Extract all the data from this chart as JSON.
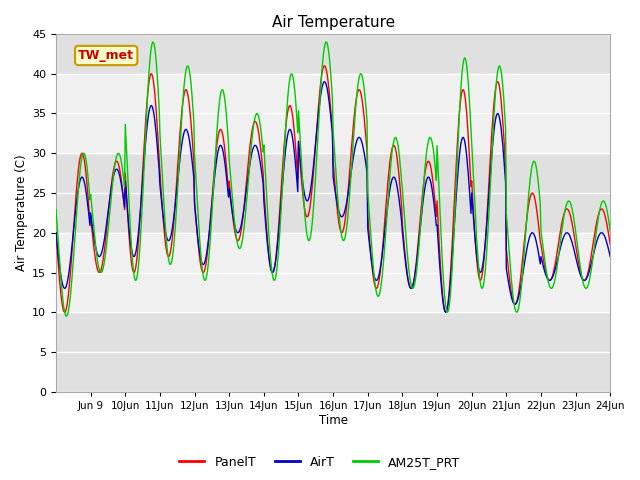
{
  "title": "Air Temperature",
  "ylabel": "Air Temperature (C)",
  "xlabel": "Time",
  "annotation": "TW_met",
  "xlim_days": [
    8.0,
    24.0
  ],
  "ylim": [
    0,
    45
  ],
  "yticks": [
    0,
    5,
    10,
    15,
    20,
    25,
    30,
    35,
    40,
    45
  ],
  "xtick_labels": [
    "Jun 9",
    "Jun 10",
    "Jun 11",
    "Jun 12",
    "Jun 13",
    "Jun 14",
    "Jun 15",
    "Jun 16",
    "Jun 17",
    "Jun 18",
    "Jun 19",
    "Jun 20",
    "Jun 21",
    "Jun 22",
    "Jun 23",
    "Jun 24"
  ],
  "xtick_positions": [
    9,
    10,
    11,
    12,
    13,
    14,
    15,
    16,
    17,
    18,
    19,
    20,
    21,
    22,
    23,
    24
  ],
  "legend_labels": [
    "PanelT",
    "AirT",
    "AM25T_PRT"
  ],
  "line_colors": [
    "#ff0000",
    "#0000cc",
    "#00cc00"
  ],
  "fig_bg_color": "#ffffff",
  "plot_bg_light": "#f0f0f0",
  "plot_bg_dark": "#e0e0e0",
  "grid_color": "#ffffff",
  "annotation_bg": "#ffffcc",
  "annotation_border": "#cc9900",
  "annotation_text_color": "#cc0000",
  "band_dark_ranges": [
    [
      0,
      10
    ],
    [
      20,
      30
    ],
    [
      40,
      45
    ]
  ],
  "band_light_ranges": [
    [
      10,
      20
    ],
    [
      30,
      40
    ]
  ]
}
